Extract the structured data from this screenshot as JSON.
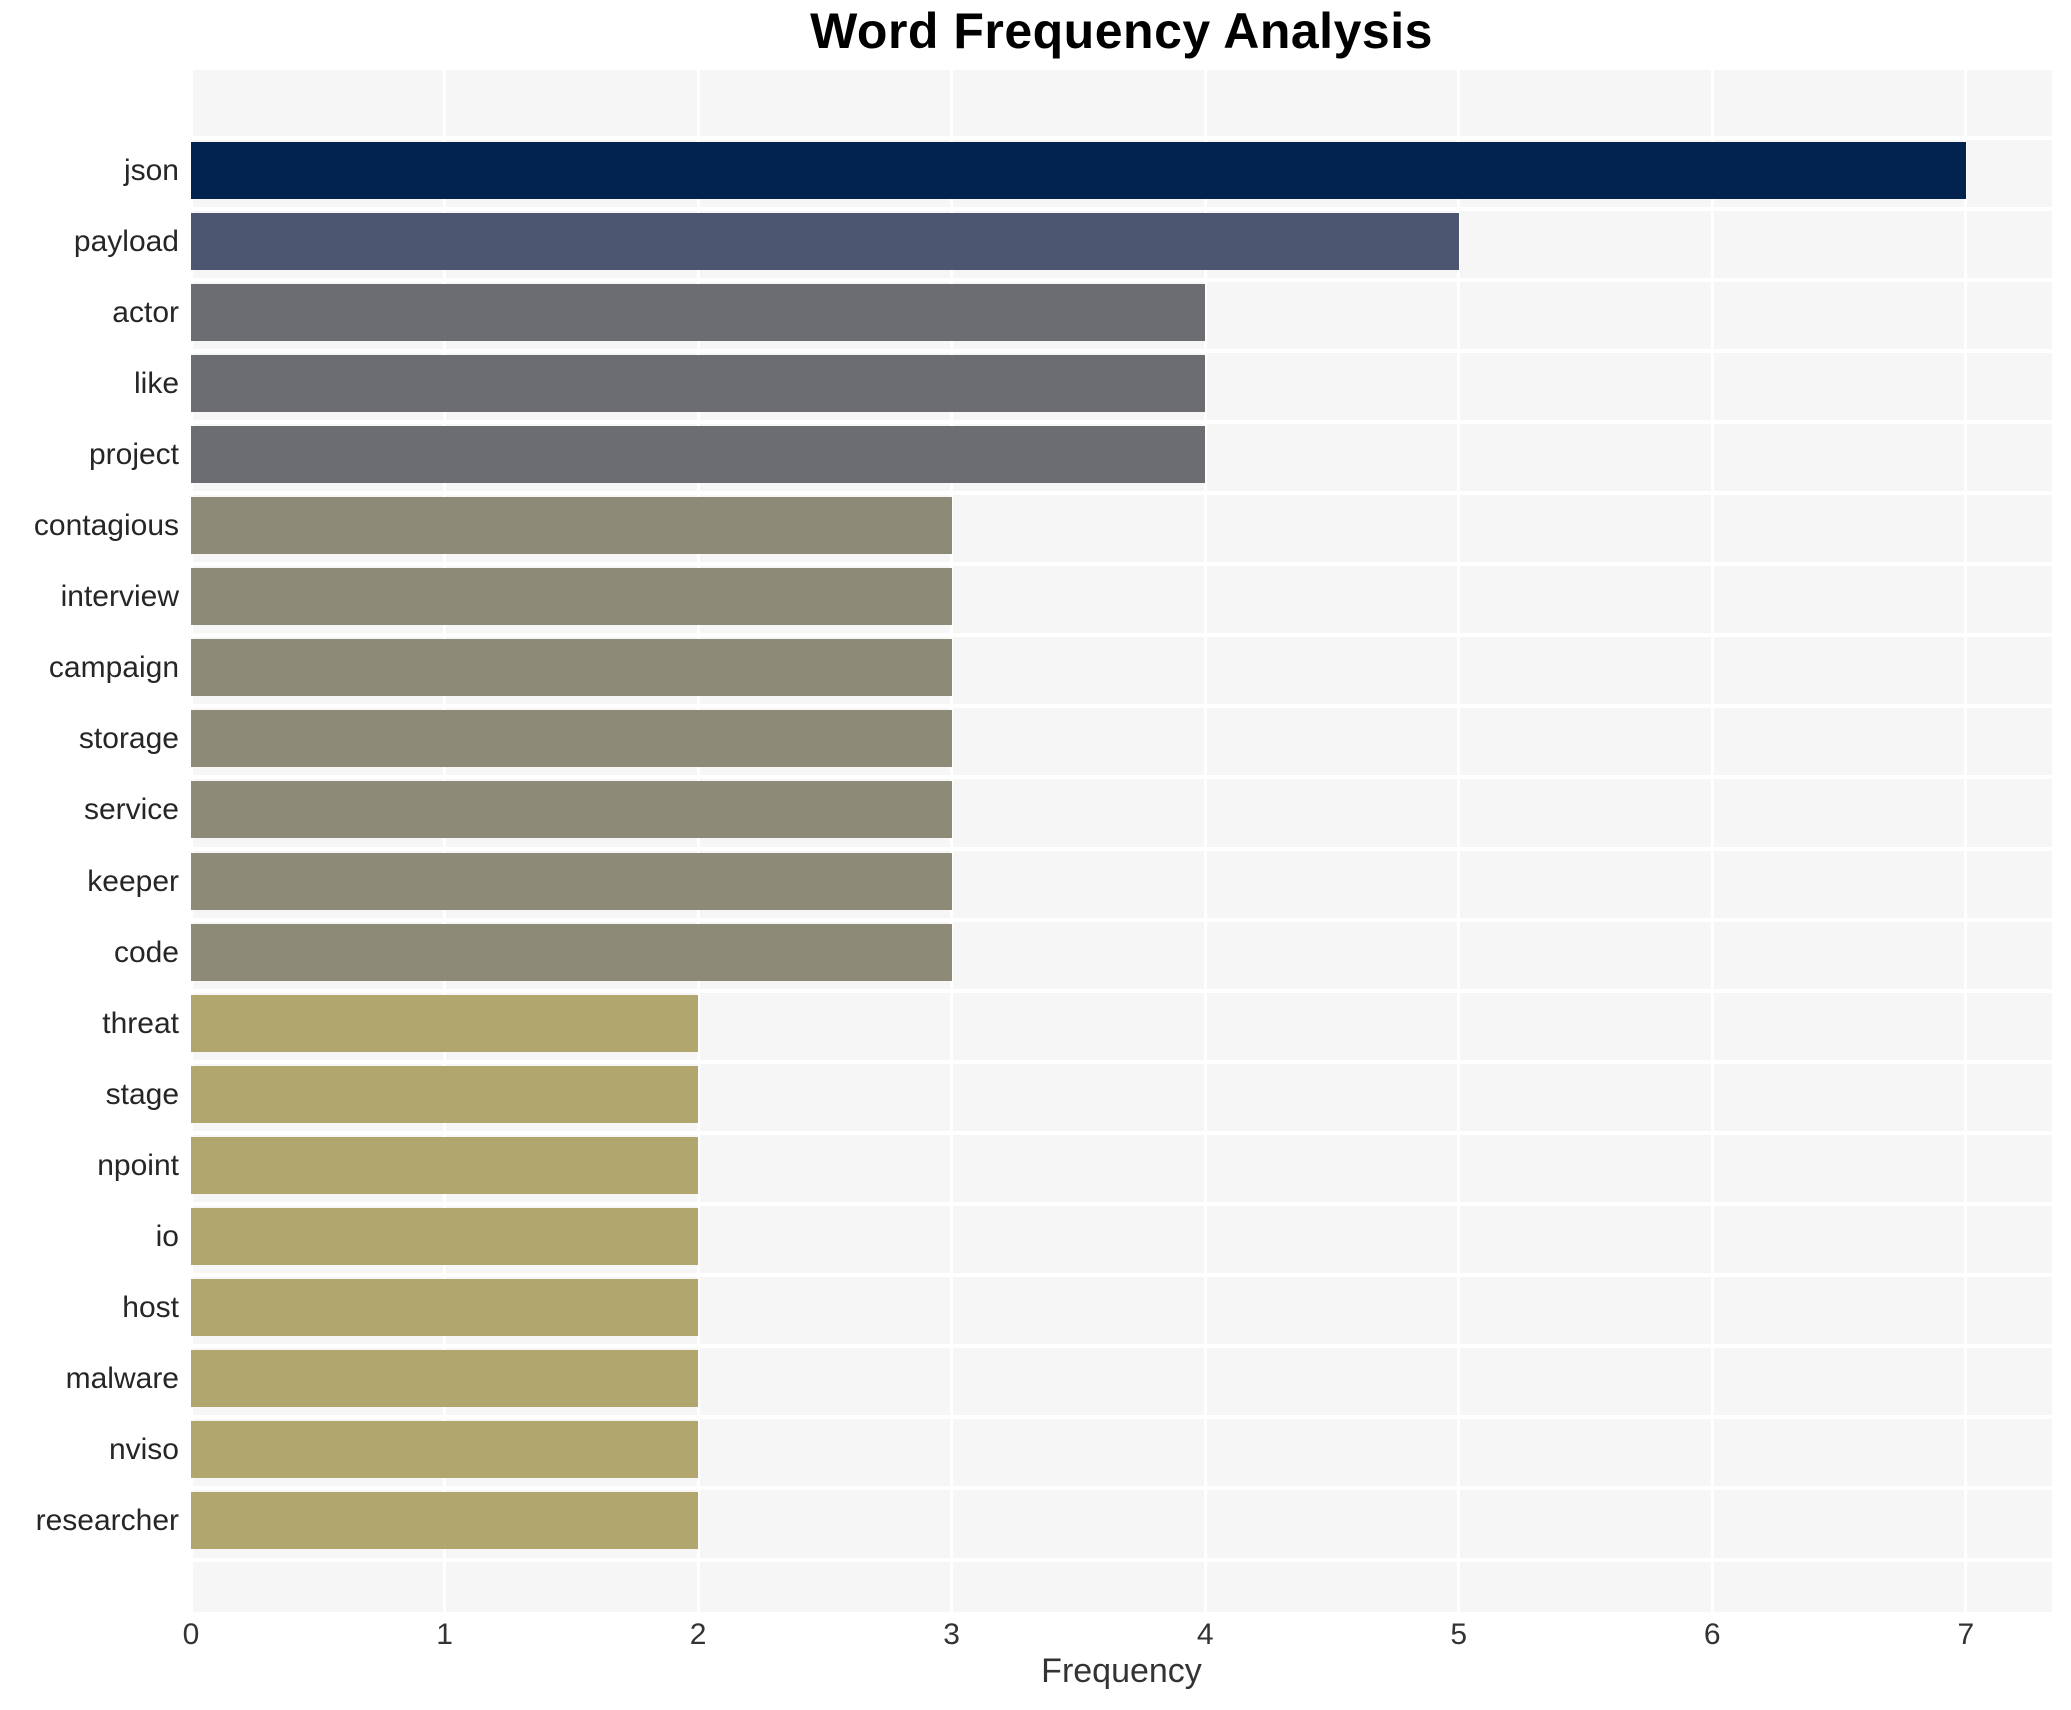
{
  "chart_data": {
    "type": "bar",
    "orientation": "horizontal",
    "title": "Word Frequency Analysis",
    "xlabel": "Frequency",
    "ylabel": "",
    "categories": [
      "json",
      "payload",
      "actor",
      "like",
      "project",
      "contagious",
      "interview",
      "campaign",
      "storage",
      "service",
      "keeper",
      "code",
      "threat",
      "stage",
      "npoint",
      "io",
      "host",
      "malware",
      "nviso",
      "researcher"
    ],
    "values": [
      7,
      5,
      4,
      4,
      4,
      3,
      3,
      3,
      3,
      3,
      3,
      3,
      2,
      2,
      2,
      2,
      2,
      2,
      2,
      2
    ],
    "bar_colors": [
      "#02234d",
      "#4c5670",
      "#6c6d70",
      "#6c6d70",
      "#6c6d70",
      "#8d8a77",
      "#8d8a77",
      "#8d8a77",
      "#8d8a77",
      "#8d8a77",
      "#8d8a77",
      "#8d8a77",
      "#b1a76e",
      "#b1a76e",
      "#b1a76e",
      "#b1a76e",
      "#b1a76e",
      "#b1a76e",
      "#b1a76e",
      "#b1a76e"
    ],
    "xticks": [
      0,
      1,
      2,
      3,
      4,
      5,
      6,
      7
    ],
    "xlim": [
      0,
      7.34
    ],
    "grid": true,
    "legend_position": "none",
    "plot_background": "#f6f6f7",
    "grid_color": "#ffffff",
    "title_color": "#000000",
    "axis_text_color": "#333333"
  }
}
